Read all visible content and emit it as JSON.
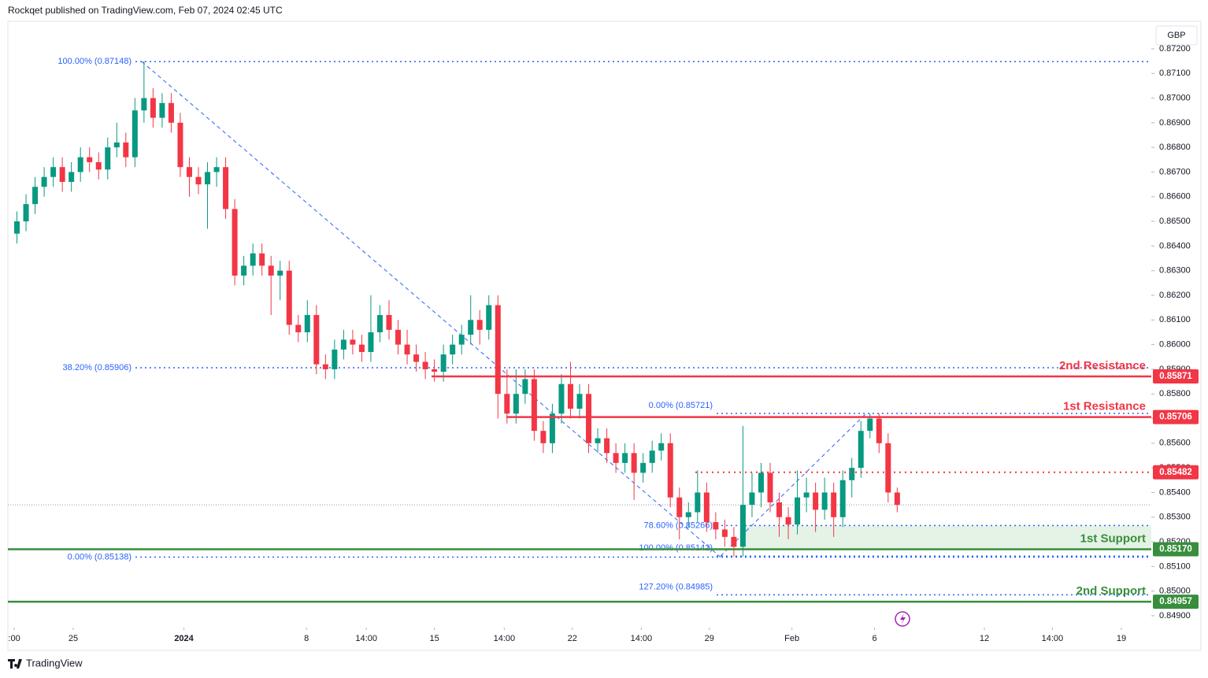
{
  "header": {
    "published": "Rockqet published on TradingView.com, Feb 07, 2024 02:45 UTC",
    "currency": "GBP",
    "brand": "TradingView"
  },
  "chart_data": {
    "type": "candlestick",
    "up_color": "#089981",
    "down_color": "#f23645",
    "xlim": [
      -1,
      125
    ],
    "ylim": [
      0.84852,
      0.87302
    ],
    "xticks": [
      {
        "value": -0.3,
        "label": ":00"
      },
      {
        "value": 6.2,
        "label": "25"
      },
      {
        "value": 18.4,
        "label": "2024"
      },
      {
        "value": 31.9,
        "label": "8"
      },
      {
        "value": 38.5,
        "label": "14:00"
      },
      {
        "value": 46.0,
        "label": "15"
      },
      {
        "value": 53.7,
        "label": "14:00"
      },
      {
        "value": 61.2,
        "label": "22"
      },
      {
        "value": 68.8,
        "label": "14:00"
      },
      {
        "value": 76.3,
        "label": "29"
      },
      {
        "value": 85.4,
        "label": "Feb"
      },
      {
        "value": 94.5,
        "label": "6"
      },
      {
        "value": 106.6,
        "label": "12"
      },
      {
        "value": 114.1,
        "label": "14:00"
      },
      {
        "value": 121.7,
        "label": "19"
      }
    ],
    "yticks": [
      {
        "value": 0.849,
        "label": "0.84900"
      },
      {
        "value": 0.85,
        "label": "0.85000"
      },
      {
        "value": 0.851,
        "label": "0.85100"
      },
      {
        "value": 0.852,
        "label": "0.85200"
      },
      {
        "value": 0.853,
        "label": "0.85300"
      },
      {
        "value": 0.854,
        "label": "0.85400"
      },
      {
        "value": 0.855,
        "label": "0.85500"
      },
      {
        "value": 0.856,
        "label": "0.85600"
      },
      {
        "value": 0.857,
        "label": "0.85700"
      },
      {
        "value": 0.858,
        "label": "0.85800"
      },
      {
        "value": 0.859,
        "label": "0.85900"
      },
      {
        "value": 0.86,
        "label": "0.86000"
      },
      {
        "value": 0.861,
        "label": "0.86100"
      },
      {
        "value": 0.862,
        "label": "0.86200"
      },
      {
        "value": 0.863,
        "label": "0.86300"
      },
      {
        "value": 0.864,
        "label": "0.86400"
      },
      {
        "value": 0.865,
        "label": "0.86500"
      },
      {
        "value": 0.866,
        "label": "0.86600"
      },
      {
        "value": 0.867,
        "label": "0.86700"
      },
      {
        "value": 0.868,
        "label": "0.86800"
      },
      {
        "value": 0.869,
        "label": "0.86900"
      },
      {
        "value": 0.87,
        "label": "0.87000"
      },
      {
        "value": 0.871,
        "label": "0.87100"
      },
      {
        "value": 0.872,
        "label": "0.87200"
      }
    ],
    "x": [
      0,
      1,
      2,
      3,
      4,
      5,
      6,
      7,
      8,
      9,
      10,
      11,
      12,
      13,
      14,
      15,
      16,
      17,
      18,
      19,
      20,
      21,
      22,
      23,
      24,
      25,
      26,
      27,
      28,
      29,
      30,
      31,
      32,
      33,
      34,
      35,
      36,
      37,
      38,
      39,
      40,
      41,
      42,
      43,
      44,
      45,
      46,
      47,
      48,
      49,
      50,
      51,
      52,
      53,
      54,
      55,
      56,
      57,
      58,
      59,
      60,
      61,
      62,
      63,
      64,
      65,
      66,
      67,
      68,
      69,
      70,
      71,
      72,
      73,
      74,
      75,
      76,
      77,
      78,
      79,
      80,
      81,
      82,
      83,
      84,
      85,
      86,
      87,
      88,
      89,
      90,
      91,
      92,
      93,
      94,
      95,
      96,
      97
    ],
    "open": [
      0.8645,
      0.865,
      0.8657,
      0.8664,
      0.8668,
      0.8672,
      0.8666,
      0.867,
      0.8676,
      0.8674,
      0.8671,
      0.868,
      0.8682,
      0.8676,
      0.8695,
      0.87,
      0.8692,
      0.8698,
      0.869,
      0.8672,
      0.8668,
      0.8665,
      0.867,
      0.8672,
      0.8655,
      0.8628,
      0.8632,
      0.8637,
      0.8632,
      0.8628,
      0.863,
      0.8608,
      0.8605,
      0.8612,
      0.8592,
      0.859,
      0.8598,
      0.8602,
      0.86,
      0.8597,
      0.8605,
      0.8612,
      0.8606,
      0.86,
      0.8596,
      0.8593,
      0.859,
      0.8589,
      0.8596,
      0.86,
      0.8604,
      0.861,
      0.8606,
      0.8616,
      0.858,
      0.8572,
      0.858,
      0.8586,
      0.8565,
      0.856,
      0.8572,
      0.8584,
      0.8574,
      0.858,
      0.856,
      0.8562,
      0.8556,
      0.8552,
      0.8556,
      0.8548,
      0.8552,
      0.8557,
      0.856,
      0.8538,
      0.853,
      0.8532,
      0.854,
      0.8528,
      0.8525,
      0.8522,
      0.8518,
      0.8535,
      0.854,
      0.8548,
      0.8536,
      0.853,
      0.8527,
      0.8538,
      0.854,
      0.8533,
      0.854,
      0.853,
      0.8545,
      0.855,
      0.8565,
      0.857,
      0.856,
      0.854
    ],
    "high": [
      0.8654,
      0.8661,
      0.8668,
      0.8672,
      0.8676,
      0.8676,
      0.8674,
      0.868,
      0.868,
      0.8678,
      0.8684,
      0.869,
      0.8686,
      0.87,
      0.8715,
      0.8704,
      0.8702,
      0.8702,
      0.8694,
      0.8676,
      0.8672,
      0.8674,
      0.8676,
      0.8676,
      0.8659,
      0.8636,
      0.8641,
      0.8641,
      0.8636,
      0.8634,
      0.8634,
      0.8612,
      0.8618,
      0.8616,
      0.8596,
      0.8602,
      0.8606,
      0.8606,
      0.8604,
      0.862,
      0.8616,
      0.8618,
      0.861,
      0.8606,
      0.86,
      0.8597,
      0.8594,
      0.86,
      0.8604,
      0.8608,
      0.862,
      0.8614,
      0.862,
      0.862,
      0.859,
      0.859,
      0.859,
      0.859,
      0.8569,
      0.8576,
      0.8588,
      0.8593,
      0.8584,
      0.8584,
      0.8566,
      0.8566,
      0.856,
      0.856,
      0.856,
      0.8556,
      0.8561,
      0.8564,
      0.8564,
      0.8542,
      0.8536,
      0.8549,
      0.8544,
      0.8532,
      0.8529,
      0.8526,
      0.8567,
      0.8548,
      0.8552,
      0.8552,
      0.854,
      0.8534,
      0.8549,
      0.8546,
      0.8544,
      0.8546,
      0.8544,
      0.8549,
      0.8554,
      0.8569,
      0.8572,
      0.8572,
      0.8564,
      0.8542
    ],
    "low": [
      0.8641,
      0.8646,
      0.8653,
      0.866,
      0.8664,
      0.8662,
      0.8662,
      0.8666,
      0.867,
      0.8667,
      0.8667,
      0.8676,
      0.8672,
      0.8672,
      0.869,
      0.8688,
      0.8688,
      0.8686,
      0.8668,
      0.866,
      0.8661,
      0.8647,
      0.8664,
      0.8651,
      0.8624,
      0.8624,
      0.8628,
      0.8628,
      0.8612,
      0.8618,
      0.8604,
      0.8601,
      0.8601,
      0.8588,
      0.8586,
      0.8586,
      0.8594,
      0.8596,
      0.8593,
      0.8593,
      0.8601,
      0.8602,
      0.8596,
      0.8592,
      0.8589,
      0.8586,
      0.8585,
      0.8585,
      0.8592,
      0.8596,
      0.86,
      0.86,
      0.8602,
      0.857,
      0.8568,
      0.8568,
      0.8576,
      0.8561,
      0.8556,
      0.8556,
      0.8568,
      0.857,
      0.857,
      0.8556,
      0.8556,
      0.8552,
      0.8548,
      0.8548,
      0.8537,
      0.8544,
      0.8548,
      0.8553,
      0.8534,
      0.8521,
      0.8526,
      0.8528,
      0.8524,
      0.8521,
      0.8518,
      0.8514,
      0.8514,
      0.853,
      0.8534,
      0.8532,
      0.8522,
      0.8521,
      0.8523,
      0.8532,
      0.8524,
      0.8529,
      0.8522,
      0.8526,
      0.8538,
      0.8546,
      0.8562,
      0.8556,
      0.8536,
      0.8532
    ],
    "close": [
      0.865,
      0.8657,
      0.8664,
      0.8668,
      0.8672,
      0.8666,
      0.867,
      0.8676,
      0.8674,
      0.8671,
      0.868,
      0.8682,
      0.8676,
      0.8695,
      0.87,
      0.8692,
      0.8698,
      0.869,
      0.8672,
      0.8668,
      0.8665,
      0.867,
      0.8672,
      0.8655,
      0.8628,
      0.8632,
      0.8637,
      0.8632,
      0.8628,
      0.863,
      0.8608,
      0.8605,
      0.8612,
      0.8592,
      0.859,
      0.8598,
      0.8602,
      0.86,
      0.8597,
      0.8605,
      0.8612,
      0.8606,
      0.86,
      0.8596,
      0.8593,
      0.859,
      0.8589,
      0.8596,
      0.86,
      0.8604,
      0.861,
      0.8606,
      0.8616,
      0.858,
      0.8572,
      0.858,
      0.8586,
      0.8565,
      0.856,
      0.8572,
      0.8584,
      0.8574,
      0.858,
      0.856,
      0.8562,
      0.8556,
      0.8552,
      0.8556,
      0.8548,
      0.8552,
      0.8557,
      0.856,
      0.8538,
      0.853,
      0.8532,
      0.854,
      0.8528,
      0.8525,
      0.8522,
      0.8518,
      0.8535,
      0.854,
      0.8548,
      0.8536,
      0.853,
      0.8527,
      0.8538,
      0.854,
      0.8533,
      0.854,
      0.853,
      0.8545,
      0.855,
      0.8565,
      0.857,
      0.856,
      0.854,
      0.8535
    ],
    "levels": [
      {
        "name": "2nd Resistance",
        "price": {
          "value": 0.85871,
          "label": "0.85871"
        },
        "color": "#f23645",
        "dotted": false
      },
      {
        "name": "1st Resistance",
        "price": {
          "value": 0.85706,
          "label": "0.85706"
        },
        "color": "#f23645",
        "dotted": false
      },
      {
        "price": {
          "value": 0.85482,
          "label": "0.85482"
        },
        "color": "#f23645",
        "dotted": true
      },
      {
        "name": "1st Support",
        "price": {
          "value": 0.8517,
          "label": "0.85170"
        },
        "color": "#388e3c",
        "dotted": false
      },
      {
        "name": "2nd Support",
        "price": {
          "value": 0.84957,
          "label": "0.84957"
        },
        "color": "#388e3c",
        "dotted": false
      }
    ],
    "fib_levels": [
      {
        "text": "100.00% (0.87148)",
        "value": 0.87148
      },
      {
        "text": "38.20% (0.85906)",
        "value": 0.85906
      },
      {
        "text": "0.00% (0.85138)",
        "value": 0.85138
      },
      {
        "text": "0.00% (0.85721)",
        "value": 0.85721
      },
      {
        "text": "78.60% (0.85266)",
        "value": 0.85266
      },
      {
        "text": "100.00% (0.85142)",
        "value": 0.85142
      },
      {
        "text": "127.20% (0.84985)",
        "value": 0.84985
      }
    ],
    "fib_color": "#2962ff",
    "zone_color": "#4caf50"
  }
}
